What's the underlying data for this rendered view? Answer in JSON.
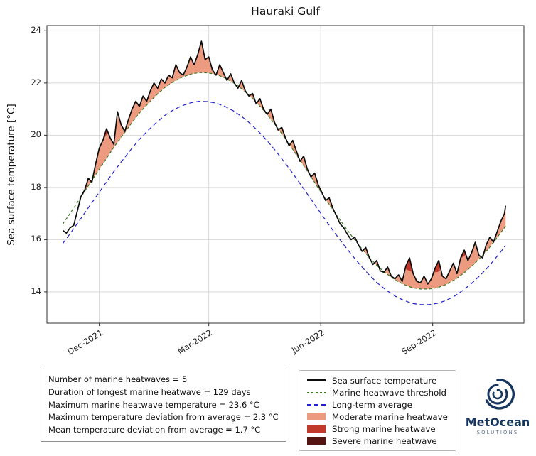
{
  "chart_data": {
    "type": "line",
    "title": "Hauraki Gulf",
    "ylabel": "Sea surface temperature [°C]",
    "xlabel": "",
    "x_units": "days (0 = start of record, Nov 2021)",
    "xlim": [
      -13,
      379
    ],
    "ylim": [
      12.8,
      24.2
    ],
    "grid": true,
    "grid_color": "#d9d9d9",
    "yticks": [
      14,
      16,
      18,
      20,
      22,
      24
    ],
    "xticks": [
      {
        "t": 30,
        "label": "Dec-2021"
      },
      {
        "t": 120,
        "label": "Mar-2022"
      },
      {
        "t": 212,
        "label": "Jun-2022"
      },
      {
        "t": 304,
        "label": "Sep-2022"
      }
    ],
    "series": {
      "sst": {
        "label": "Sea surface temperature",
        "color": "#0b0b0b",
        "width": 1.7,
        "x": [
          0,
          3,
          6,
          9,
          12,
          15,
          18,
          21,
          24,
          27,
          30,
          33,
          36,
          39,
          42,
          45,
          48,
          51,
          54,
          57,
          60,
          63,
          66,
          69,
          72,
          75,
          78,
          81,
          84,
          87,
          90,
          93,
          96,
          99,
          102,
          105,
          108,
          111,
          114,
          117,
          120,
          123,
          126,
          129,
          132,
          135,
          138,
          141,
          144,
          147,
          150,
          153,
          156,
          159,
          162,
          165,
          168,
          171,
          174,
          177,
          180,
          183,
          186,
          189,
          192,
          195,
          198,
          201,
          204,
          207,
          210,
          213,
          216,
          219,
          222,
          225,
          228,
          231,
          234,
          237,
          240,
          243,
          246,
          249,
          252,
          255,
          258,
          261,
          264,
          267,
          270,
          273,
          276,
          279,
          282,
          285,
          288,
          291,
          294,
          297,
          300,
          303,
          306,
          309,
          312,
          315,
          318,
          321,
          324,
          327,
          330,
          333,
          336,
          339,
          342,
          345,
          348,
          351,
          354,
          357,
          360,
          363,
          364
        ],
        "y": [
          16.35,
          16.25,
          16.45,
          16.55,
          17.1,
          17.65,
          17.9,
          18.35,
          18.2,
          18.9,
          19.5,
          19.8,
          20.25,
          19.9,
          19.65,
          20.9,
          20.4,
          20.15,
          20.6,
          21.0,
          21.3,
          21.1,
          21.5,
          21.3,
          21.7,
          22.0,
          21.8,
          22.15,
          22.0,
          22.3,
          22.2,
          22.7,
          22.4,
          22.3,
          22.6,
          23.0,
          22.7,
          23.1,
          23.6,
          22.9,
          23.0,
          22.5,
          22.3,
          22.7,
          22.4,
          22.1,
          22.35,
          22.0,
          21.8,
          22.1,
          21.7,
          21.5,
          21.6,
          21.2,
          21.4,
          21.0,
          20.8,
          21.0,
          20.5,
          20.2,
          20.3,
          19.9,
          19.6,
          19.8,
          19.4,
          19.0,
          19.2,
          18.7,
          18.4,
          18.55,
          18.1,
          17.8,
          17.5,
          17.6,
          17.2,
          16.9,
          16.6,
          16.45,
          16.2,
          16.0,
          16.1,
          15.8,
          15.55,
          15.7,
          15.3,
          15.05,
          15.2,
          14.8,
          14.75,
          14.95,
          14.6,
          14.5,
          14.65,
          14.4,
          15.0,
          15.3,
          14.7,
          14.4,
          14.35,
          14.6,
          14.3,
          14.5,
          14.9,
          15.2,
          14.6,
          14.5,
          14.8,
          15.1,
          14.7,
          15.3,
          15.6,
          15.2,
          15.5,
          15.9,
          15.4,
          15.3,
          15.8,
          16.1,
          15.9,
          16.3,
          16.7,
          17.0,
          17.3
        ]
      },
      "threshold": {
        "label": "Marine heatwave threshold",
        "color": "#3d7a1f",
        "width": 1.2,
        "dash": "4 3",
        "x": [
          0,
          7,
          14,
          21,
          28,
          35,
          42,
          49,
          56,
          63,
          70,
          77,
          84,
          91,
          98,
          105,
          112,
          119,
          126,
          133,
          140,
          147,
          154,
          161,
          168,
          175,
          182,
          189,
          196,
          203,
          210,
          217,
          224,
          231,
          238,
          245,
          252,
          259,
          266,
          273,
          280,
          287,
          294,
          301,
          308,
          315,
          322,
          329,
          336,
          343,
          350,
          357,
          364
        ],
        "y": [
          16.6,
          17.07,
          17.56,
          18.06,
          18.55,
          19.05,
          19.54,
          19.98,
          20.43,
          20.85,
          21.21,
          21.54,
          21.83,
          22.05,
          22.22,
          22.34,
          22.4,
          22.39,
          22.33,
          22.2,
          22.02,
          21.78,
          21.5,
          21.17,
          20.79,
          20.38,
          19.93,
          19.46,
          18.97,
          18.48,
          17.98,
          17.48,
          17.01,
          16.55,
          16.11,
          15.7,
          15.31,
          14.97,
          14.7,
          14.46,
          14.29,
          14.16,
          14.11,
          14.11,
          14.16,
          14.28,
          14.46,
          14.7,
          14.97,
          15.3,
          15.66,
          16.08,
          16.52
        ]
      },
      "average": {
        "label": "Long-term average",
        "color": "#2222cc",
        "width": 1.2,
        "dash": "6 4",
        "x": [
          0,
          7,
          14,
          21,
          28,
          35,
          42,
          49,
          56,
          63,
          70,
          77,
          84,
          91,
          98,
          105,
          112,
          119,
          126,
          133,
          140,
          147,
          154,
          161,
          168,
          175,
          182,
          189,
          196,
          203,
          210,
          217,
          224,
          231,
          238,
          245,
          252,
          259,
          266,
          273,
          280,
          287,
          294,
          301,
          308,
          315,
          322,
          329,
          336,
          343,
          350,
          357,
          364
        ],
        "y": [
          15.85,
          16.29,
          16.75,
          17.22,
          17.68,
          18.15,
          18.61,
          19.03,
          19.45,
          19.84,
          20.18,
          20.49,
          20.76,
          20.97,
          21.13,
          21.24,
          21.3,
          21.29,
          21.23,
          21.11,
          20.94,
          20.72,
          20.45,
          20.14,
          19.79,
          19.4,
          18.98,
          18.54,
          18.08,
          17.62,
          17.15,
          16.68,
          16.23,
          15.8,
          15.39,
          15.0,
          14.64,
          14.32,
          14.06,
          13.84,
          13.68,
          13.56,
          13.51,
          13.51,
          13.56,
          13.67,
          13.84,
          14.06,
          14.32,
          14.63,
          14.97,
          15.36,
          15.77
        ]
      }
    },
    "categories": [
      {
        "label": "Moderate marine heatwave",
        "color": "#ec9b80"
      },
      {
        "label": "Strong marine heatwave",
        "color": "#c0392b"
      },
      {
        "label": "Severe marine heatwave",
        "color": "#541512"
      }
    ]
  },
  "stats_box": {
    "lines": [
      "Number of marine heatwaves = 5",
      "Duration of longest marine heatwave = 129 days",
      "Maximum marine heatwave temperature = 23.6 °C",
      "Maximum temperature deviation from average = 2.3 °C",
      "Mean temperature deviation from average = 1.7 °C"
    ]
  },
  "legend": {
    "entries": [
      {
        "label": "Sea surface temperature",
        "swatch": "line",
        "color": "#0b0b0b",
        "dash": "none"
      },
      {
        "label": "Marine heatwave threshold",
        "swatch": "line",
        "color": "#3d7a1f",
        "dash": "short"
      },
      {
        "label": "Long-term average",
        "swatch": "line",
        "color": "#2222cc",
        "dash": "long"
      },
      {
        "label": "Moderate marine heatwave",
        "swatch": "patch",
        "color": "#ec9b80",
        "dash": "none"
      },
      {
        "label": "Strong marine heatwave",
        "swatch": "patch",
        "color": "#c0392b",
        "dash": "none"
      },
      {
        "label": "Severe marine heatwave",
        "swatch": "patch",
        "color": "#541512",
        "dash": "none"
      }
    ]
  },
  "logo": {
    "name": "MetOcean",
    "subtitle": "SOLUTIONS",
    "color": "#16355f"
  }
}
